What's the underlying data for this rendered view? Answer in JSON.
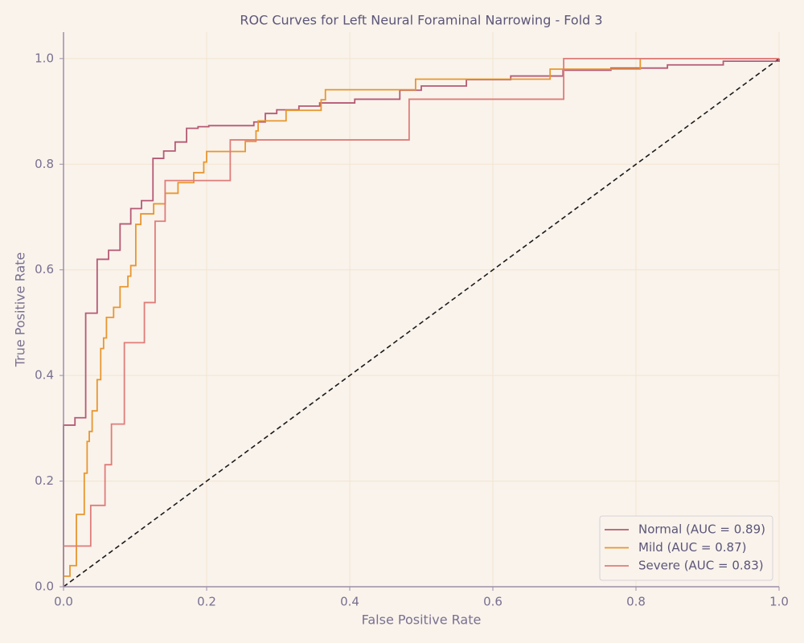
{
  "chart_data": {
    "type": "line",
    "title": "ROC Curves for Left Neural Foraminal Narrowing - Fold 3",
    "xlabel": "False Positive Rate",
    "ylabel": "True Positive Rate",
    "xlim": [
      0,
      1
    ],
    "ylim": [
      0,
      1.05
    ],
    "xticks": [
      {
        "value": 0,
        "label": "0.0"
      },
      0.2,
      0.4,
      0.6,
      0.8,
      {
        "value": 1,
        "label": "1.0"
      }
    ],
    "yticks": [
      {
        "value": 0,
        "label": "0.0"
      },
      0.2,
      0.4,
      0.6,
      0.8,
      {
        "value": 1,
        "label": "1.0"
      }
    ],
    "grid": true,
    "legend": "lower right",
    "series": [
      {
        "name": "Normal (AUC = 0.89)",
        "color": "#b55a74",
        "x": [
          0,
          0,
          0.016,
          0.016,
          0.031,
          0.031,
          0.047,
          0.047,
          0.063,
          0.063,
          0.079,
          0.079,
          0.094,
          0.094,
          0.109,
          0.109,
          0.125,
          0.125,
          0.14,
          0.14,
          0.156,
          0.156,
          0.172,
          0.172,
          0.188,
          0.188,
          0.203,
          0.203,
          0.266,
          0.266,
          0.282,
          0.282,
          0.298,
          0.298,
          0.329,
          0.329,
          0.358,
          0.358,
          0.407,
          0.407,
          0.47,
          0.47,
          0.5,
          0.5,
          0.563,
          0.563,
          0.625,
          0.625,
          0.698,
          0.698,
          0.765,
          0.765,
          0.844,
          0.844,
          0.922,
          0.922,
          1,
          1
        ],
        "values": [
          0,
          0.306,
          0.306,
          0.32,
          0.32,
          0.518,
          0.518,
          0.62,
          0.62,
          0.637,
          0.637,
          0.687,
          0.687,
          0.716,
          0.716,
          0.731,
          0.731,
          0.811,
          0.811,
          0.825,
          0.825,
          0.842,
          0.842,
          0.868,
          0.868,
          0.871,
          0.871,
          0.873,
          0.873,
          0.88,
          0.88,
          0.896,
          0.896,
          0.903,
          0.903,
          0.91,
          0.91,
          0.916,
          0.916,
          0.923,
          0.923,
          0.94,
          0.94,
          0.948,
          0.948,
          0.96,
          0.96,
          0.967,
          0.967,
          0.978,
          0.978,
          0.982,
          0.982,
          0.988,
          0.988,
          0.995,
          0.995,
          1
        ]
      },
      {
        "name": "Mild (AUC = 0.87)",
        "color": "#e8962e",
        "x": [
          0,
          0,
          0.009,
          0.009,
          0.018,
          0.018,
          0.029,
          0.029,
          0.033,
          0.033,
          0.036,
          0.036,
          0.04,
          0.04,
          0.047,
          0.047,
          0.052,
          0.052,
          0.056,
          0.056,
          0.06,
          0.06,
          0.07,
          0.07,
          0.079,
          0.079,
          0.09,
          0.09,
          0.094,
          0.094,
          0.101,
          0.101,
          0.108,
          0.108,
          0.126,
          0.126,
          0.142,
          0.142,
          0.16,
          0.16,
          0.182,
          0.182,
          0.196,
          0.196,
          0.2,
          0.2,
          0.254,
          0.254,
          0.269,
          0.269,
          0.272,
          0.272,
          0.311,
          0.311,
          0.36,
          0.36,
          0.366,
          0.366,
          0.492,
          0.492,
          0.68,
          0.68,
          0.806,
          0.806,
          1
        ],
        "values": [
          0,
          0.02,
          0.02,
          0.04,
          0.04,
          0.137,
          0.137,
          0.215,
          0.215,
          0.275,
          0.275,
          0.294,
          0.294,
          0.333,
          0.333,
          0.392,
          0.392,
          0.451,
          0.451,
          0.471,
          0.471,
          0.51,
          0.51,
          0.529,
          0.529,
          0.568,
          0.568,
          0.588,
          0.588,
          0.608,
          0.608,
          0.686,
          0.686,
          0.706,
          0.706,
          0.725,
          0.725,
          0.745,
          0.745,
          0.765,
          0.765,
          0.784,
          0.784,
          0.804,
          0.804,
          0.824,
          0.824,
          0.843,
          0.843,
          0.863,
          0.863,
          0.882,
          0.882,
          0.902,
          0.902,
          0.922,
          0.922,
          0.941,
          0.941,
          0.961,
          0.961,
          0.98,
          0.98,
          1,
          1
        ]
      },
      {
        "name": "Severe (AUC = 0.83)",
        "color": "#df7c78",
        "x": [
          0,
          0,
          0.038,
          0.038,
          0.058,
          0.058,
          0.067,
          0.067,
          0.085,
          0.085,
          0.113,
          0.113,
          0.128,
          0.128,
          0.142,
          0.142,
          0.233,
          0.233,
          0.483,
          0.483,
          0.699,
          0.699,
          1
        ],
        "values": [
          0,
          0.077,
          0.077,
          0.154,
          0.154,
          0.231,
          0.231,
          0.308,
          0.308,
          0.462,
          0.462,
          0.538,
          0.538,
          0.692,
          0.692,
          0.769,
          0.769,
          0.846,
          0.846,
          0.923,
          0.923,
          1,
          1
        ]
      }
    ]
  }
}
